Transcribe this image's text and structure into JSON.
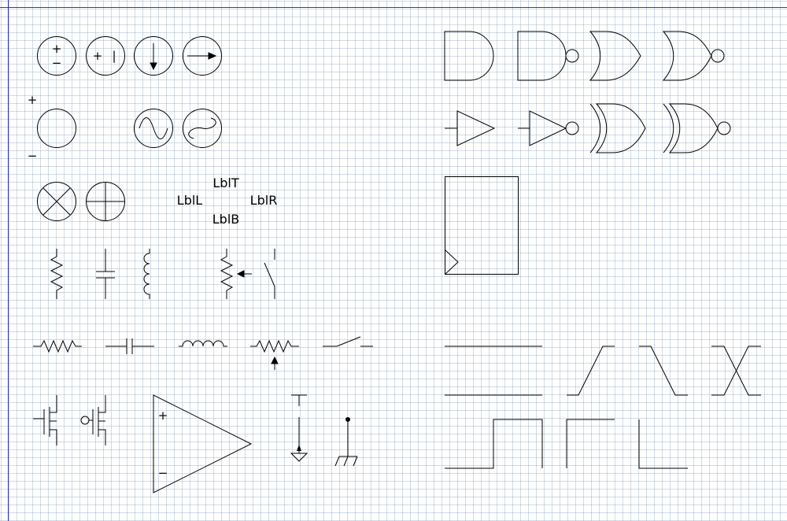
{
  "page": {
    "grid": "on",
    "margin_line_color": "#3333cc",
    "stroke_color": "#000000"
  },
  "symbols": {
    "dc_source_signs": {
      "plus": "+",
      "minus": "−"
    },
    "cell_signs": {
      "plus": "+",
      "bar": "|"
    },
    "source_polarity": {
      "plus": "+",
      "minus": "−"
    },
    "opamp": {
      "plus": "+",
      "minus": "−"
    }
  },
  "label_demo": {
    "top": "LblT",
    "left": "LblL",
    "right": "LblR",
    "bottom": "LblB"
  },
  "icons": [
    "voltage-source-icon",
    "battery-cell-icon",
    "current-source-down-icon",
    "current-source-right-icon",
    "source-circle-icon",
    "ac-source-icon",
    "ac-source-alt-icon",
    "lamp-icon",
    "crossed-circle-icon",
    "resistor-icon",
    "capacitor-icon",
    "inductor-icon",
    "potentiometer-icon",
    "switch-icon",
    "nmos-icon",
    "pmos-icon",
    "opamp-icon",
    "ground-icon",
    "chassis-ground-icon",
    "and-gate-icon",
    "nand-gate-icon",
    "or-gate-icon",
    "nor-gate-icon",
    "buffer-icon",
    "inverter-icon",
    "xor-gate-icon",
    "xnor-gate-icon",
    "flip-flop-box-icon",
    "rising-edge-icon",
    "falling-edge-icon",
    "bus-transition-icon",
    "pulse-icon"
  ]
}
